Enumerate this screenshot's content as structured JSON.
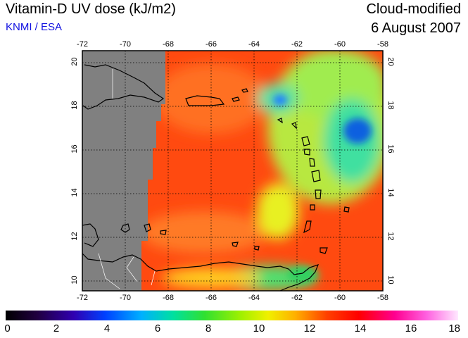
{
  "header": {
    "title": "Vitamin-D UV dose (kJ/m2)",
    "credit": "KNMI / ESA",
    "product": "Cloud-modified",
    "date": "6 August 2007"
  },
  "map": {
    "lon_ticks": [
      -72,
      -70,
      -68,
      -66,
      -64,
      -62,
      -60,
      -58
    ],
    "lat_ticks": [
      20,
      18,
      16,
      14,
      12,
      10
    ],
    "lon_range": [
      -72,
      -58
    ],
    "lat_range": [
      9.5,
      20.5
    ],
    "grid": "dotted",
    "colors": {
      "no_data": "#808080",
      "coast": "#000000",
      "border": "#ffffff"
    }
  },
  "colorbar": {
    "labels": [
      "0",
      "2",
      "4",
      "6",
      "8",
      "10",
      "12",
      "14",
      "16",
      "18"
    ],
    "range": [
      0,
      18
    ]
  }
}
